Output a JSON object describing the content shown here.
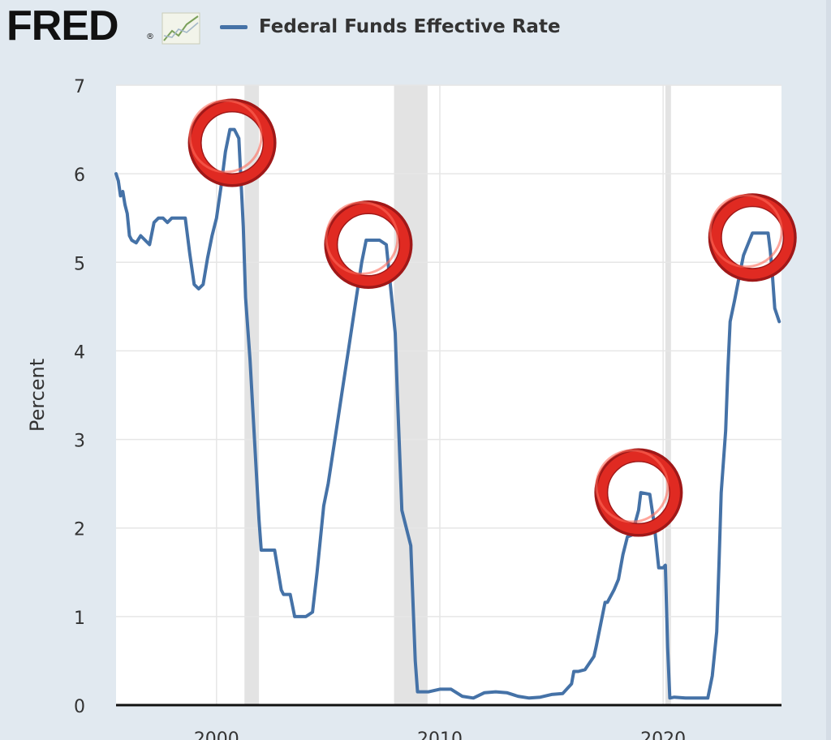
{
  "header": {
    "logo_text": "FRED",
    "logo_reg": "®"
  },
  "chart_data": {
    "type": "line",
    "title": "",
    "xlabel": "",
    "ylabel": "Percent",
    "ylim": [
      0,
      7
    ],
    "xlim": [
      1995.5,
      2025.3
    ],
    "yticks": [
      0,
      1,
      2,
      3,
      4,
      5,
      6,
      7
    ],
    "xticks": [
      {
        "value": 2000,
        "label": "2000"
      },
      {
        "value": 2010,
        "label": "2010"
      },
      {
        "value": 2020,
        "label": "2020"
      }
    ],
    "grid": true,
    "legend_position": "top",
    "recessions": [
      {
        "start": 2001.25,
        "end": 2001.9,
        "label": "recession-2001"
      },
      {
        "start": 2007.95,
        "end": 2009.45,
        "label": "recession-2008"
      },
      {
        "start": 2020.1,
        "end": 2020.35,
        "label": "recession-2020"
      }
    ],
    "highlights": [
      {
        "x": 2000.7,
        "y": 6.35,
        "label": "peak-2000"
      },
      {
        "x": 2006.8,
        "y": 5.2,
        "label": "peak-2006"
      },
      {
        "x": 2018.9,
        "y": 2.4,
        "label": "peak-2019"
      },
      {
        "x": 2024.0,
        "y": 5.28,
        "label": "peak-2024"
      }
    ],
    "series": [
      {
        "name": "Federal Funds Effective Rate",
        "color": "#4572a7",
        "x": [
          1995.5,
          1995.6,
          1995.7,
          1995.8,
          1995.9,
          1996.0,
          1996.1,
          1996.2,
          1996.4,
          1996.6,
          1996.8,
          1997.0,
          1997.2,
          1997.4,
          1997.6,
          1997.8,
          1998.0,
          1998.2,
          1998.4,
          1998.6,
          1998.8,
          1999.0,
          1999.2,
          1999.4,
          1999.6,
          1999.8,
          2000.0,
          2000.2,
          2000.4,
          2000.6,
          2000.8,
          2001.0,
          2001.1,
          2001.2,
          2001.3,
          2001.5,
          2001.7,
          2001.9,
          2002.0,
          2002.3,
          2002.6,
          2002.9,
          2003.0,
          2003.3,
          2003.5,
          2003.7,
          2004.0,
          2004.3,
          2004.5,
          2004.8,
          2005.0,
          2005.3,
          2005.6,
          2005.9,
          2006.2,
          2006.5,
          2006.7,
          2007.0,
          2007.3,
          2007.6,
          2007.8,
          2008.0,
          2008.1,
          2008.3,
          2008.5,
          2008.7,
          2008.9,
          2009.0,
          2009.5,
          2010.0,
          2010.5,
          2011.0,
          2011.5,
          2012.0,
          2012.5,
          2013.0,
          2013.5,
          2014.0,
          2014.5,
          2015.0,
          2015.5,
          2015.9,
          2016.0,
          2016.2,
          2016.5,
          2016.9,
          2017.0,
          2017.2,
          2017.4,
          2017.5,
          2017.8,
          2018.0,
          2018.2,
          2018.4,
          2018.6,
          2018.9,
          2019.0,
          2019.4,
          2019.6,
          2019.8,
          2020.0,
          2020.1,
          2020.2,
          2020.3,
          2020.5,
          2021.0,
          2021.5,
          2022.0,
          2022.2,
          2022.4,
          2022.5,
          2022.6,
          2022.8,
          2022.9,
          2023.0,
          2023.2,
          2023.4,
          2023.6,
          2024.0,
          2024.5,
          2024.7,
          2024.8,
          2024.9,
          2025.0,
          2025.2
        ],
        "y": [
          6.0,
          5.92,
          5.75,
          5.8,
          5.65,
          5.55,
          5.3,
          5.25,
          5.22,
          5.3,
          5.25,
          5.2,
          5.45,
          5.5,
          5.5,
          5.45,
          5.5,
          5.5,
          5.5,
          5.5,
          5.1,
          4.75,
          4.7,
          4.75,
          5.05,
          5.3,
          5.5,
          5.85,
          6.25,
          6.5,
          6.5,
          6.4,
          5.9,
          5.4,
          4.6,
          3.9,
          3.0,
          2.1,
          1.75,
          1.75,
          1.75,
          1.3,
          1.25,
          1.25,
          1.0,
          1.0,
          1.0,
          1.05,
          1.5,
          2.25,
          2.5,
          3.0,
          3.5,
          4.0,
          4.5,
          5.0,
          5.25,
          5.25,
          5.25,
          5.2,
          4.7,
          4.2,
          3.5,
          2.2,
          2.0,
          1.8,
          0.5,
          0.15,
          0.15,
          0.18,
          0.18,
          0.1,
          0.08,
          0.14,
          0.15,
          0.14,
          0.1,
          0.08,
          0.09,
          0.12,
          0.13,
          0.24,
          0.38,
          0.38,
          0.4,
          0.55,
          0.66,
          0.91,
          1.16,
          1.16,
          1.3,
          1.42,
          1.7,
          1.9,
          1.92,
          2.2,
          2.4,
          2.38,
          2.04,
          1.55,
          1.55,
          1.58,
          0.65,
          0.08,
          0.09,
          0.08,
          0.08,
          0.08,
          0.33,
          0.83,
          1.6,
          2.4,
          3.1,
          3.8,
          4.33,
          4.57,
          4.83,
          5.08,
          5.33,
          5.33,
          5.33,
          5.13,
          4.83,
          4.48,
          4.33
        ]
      }
    ]
  }
}
